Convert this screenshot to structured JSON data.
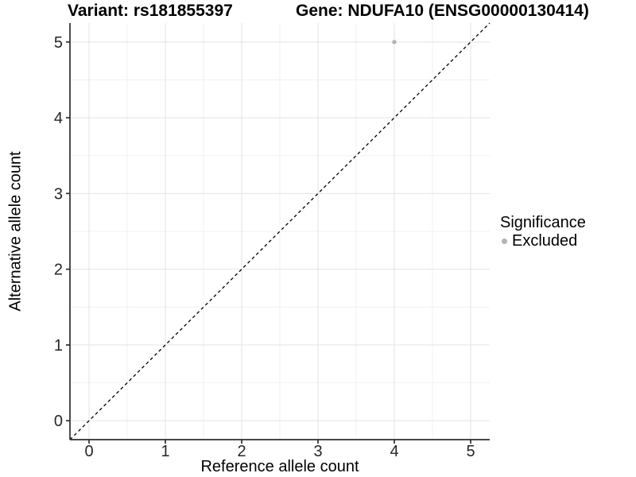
{
  "chart_data": {
    "type": "scatter",
    "title_left": "Variant: rs181855397",
    "title_right": "Gene: NDUFA10 (ENSG00000130414)",
    "xlabel": "Reference allele count",
    "ylabel": "Alternative allele count",
    "xlim": [
      -0.25,
      5.25
    ],
    "ylim": [
      -0.25,
      5.25
    ],
    "xticks": [
      0,
      1,
      2,
      3,
      4,
      5
    ],
    "yticks": [
      0,
      1,
      2,
      3,
      4,
      5
    ],
    "minor_step": 0.5,
    "grid": "major and minor gridlines on white panel",
    "points": [
      {
        "x": 4,
        "y": 5,
        "series": "Excluded"
      }
    ],
    "reference_line": {
      "kind": "identity y=x",
      "style": "dashed",
      "color": "#000000"
    },
    "legend": {
      "title": "Significance",
      "position": "right",
      "items": [
        {
          "label": "Excluded",
          "color": "#b3b3b3",
          "marker": "circle"
        }
      ]
    },
    "colors": {
      "background": "#ffffff",
      "point": "#b3b3b3",
      "grid_major": "#e3e3e3",
      "grid_minor": "#f1f1f1",
      "axis": "#2e2e2e",
      "tick_label": "#262626",
      "dashed_line": "#000000"
    }
  }
}
